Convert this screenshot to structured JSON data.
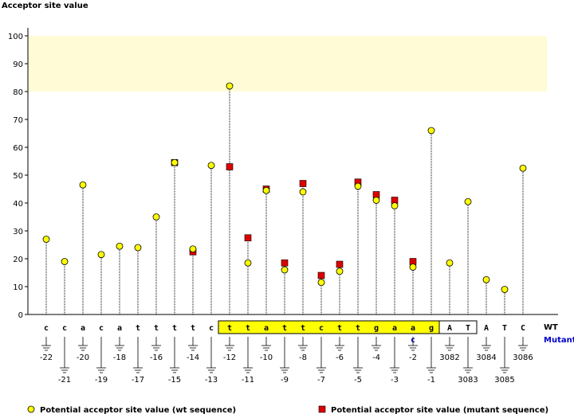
{
  "chart_data": {
    "type": "scatter",
    "title": "",
    "ylabel": "Acceptor site value",
    "ylim": [
      0,
      100
    ],
    "yticks": [
      0,
      10,
      20,
      30,
      40,
      50,
      60,
      70,
      80,
      90,
      100
    ],
    "highlight_band": [
      80,
      100
    ],
    "grid": false,
    "row_labels": {
      "wt": "WT",
      "mutant": "Mutant"
    },
    "positions": [
      {
        "base": "c",
        "num": "-22",
        "wt": 27,
        "mut": null,
        "boxed": false
      },
      {
        "base": "c",
        "num": "-21",
        "wt": 19,
        "mut": null,
        "boxed": false
      },
      {
        "base": "a",
        "num": "-20",
        "wt": 46.5,
        "mut": null,
        "boxed": false
      },
      {
        "base": "c",
        "num": "-19",
        "wt": 21.5,
        "mut": null,
        "boxed": false
      },
      {
        "base": "a",
        "num": "-18",
        "wt": 24.5,
        "mut": null,
        "boxed": false
      },
      {
        "base": "t",
        "num": "-17",
        "wt": 24,
        "mut": null,
        "boxed": false
      },
      {
        "base": "t",
        "num": "-16",
        "wt": 35,
        "mut": null,
        "boxed": false
      },
      {
        "base": "t",
        "num": "-15",
        "wt": 54.5,
        "mut": 54.5,
        "boxed": false
      },
      {
        "base": "t",
        "num": "-14",
        "wt": 23.5,
        "mut": 22.5,
        "boxed": false
      },
      {
        "base": "c",
        "num": "-13",
        "wt": 53.5,
        "mut": null,
        "boxed": false
      },
      {
        "base": "t",
        "num": "-12",
        "wt": 82,
        "mut": 53,
        "boxed": true
      },
      {
        "base": "t",
        "num": "-11",
        "wt": 18.5,
        "mut": 27.5,
        "boxed": true
      },
      {
        "base": "a",
        "num": "-10",
        "wt": 44.5,
        "mut": 45,
        "boxed": true
      },
      {
        "base": "t",
        "num": "-9",
        "wt": 16,
        "mut": 18.5,
        "boxed": true
      },
      {
        "base": "t",
        "num": "-8",
        "wt": 44,
        "mut": 47,
        "boxed": true
      },
      {
        "base": "c",
        "num": "-7",
        "wt": 11.5,
        "mut": 14,
        "boxed": true
      },
      {
        "base": "t",
        "num": "-6",
        "wt": 15.5,
        "mut": 18,
        "boxed": true
      },
      {
        "base": "t",
        "num": "-5",
        "wt": 46,
        "mut": 47.5,
        "boxed": true
      },
      {
        "base": "g",
        "num": "-4",
        "wt": 41,
        "mut": 43,
        "boxed": true
      },
      {
        "base": "a",
        "num": "-3",
        "wt": 39,
        "mut": 41,
        "boxed": true
      },
      {
        "base": "a",
        "num": "-2",
        "wt": 17,
        "mut": 19,
        "boxed": true,
        "mutant_base": "c"
      },
      {
        "base": "g",
        "num": "-1",
        "wt": 66,
        "mut": null,
        "boxed": true
      },
      {
        "base": "A",
        "num": "3082",
        "wt": 18.5,
        "mut": null,
        "boxed": false,
        "box2": true
      },
      {
        "base": "T",
        "num": "3083",
        "wt": 40.5,
        "mut": null,
        "boxed": false,
        "box2": true
      },
      {
        "base": "A",
        "num": "3084",
        "wt": 12.5,
        "mut": null,
        "boxed": false
      },
      {
        "base": "T",
        "num": "3085",
        "wt": 9,
        "mut": null,
        "boxed": false
      },
      {
        "base": "C",
        "num": "3086",
        "wt": 52.5,
        "mut": null,
        "boxed": false
      }
    ],
    "legend": [
      {
        "label": "Potential acceptor site value (wt sequence)",
        "color": "#ffff00",
        "shape": "circle"
      },
      {
        "label": "Potential acceptor site value (mutant sequence)",
        "color": "#dd0000",
        "shape": "square"
      }
    ],
    "colors": {
      "wt_marker": "#ffff00",
      "mut_marker": "#dd0000",
      "band_fill": "#fffbd6",
      "box_fill": "#ffff00",
      "mutant_text": "#0000cc"
    }
  }
}
